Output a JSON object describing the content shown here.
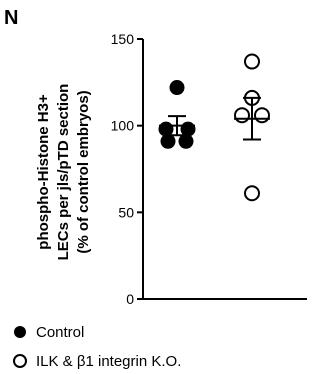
{
  "panel_label": "N",
  "chart_data": {
    "type": "scatter",
    "ylabel_lines": [
      "phospho-Histone H3+",
      "LECs per jls/pTD section",
      "(% of control embryos)"
    ],
    "ylim": [
      0,
      150
    ],
    "yticks": [
      0,
      50,
      100,
      150
    ],
    "ytick_labels": [
      "0",
      "50",
      "100",
      "150"
    ],
    "grid": false,
    "legend_placement": "bottom",
    "series": [
      {
        "name": "Control",
        "marker": "filled-circle",
        "values": [
          122,
          103,
          100,
          100,
          91,
          91
        ],
        "mean": 100,
        "sem": 5.5
      },
      {
        "name": "ILK & β1 integrin K.O.",
        "marker": "open-circle",
        "values": [
          137,
          116,
          106,
          106,
          61
        ],
        "mean": 104,
        "sem": 12
      }
    ]
  }
}
